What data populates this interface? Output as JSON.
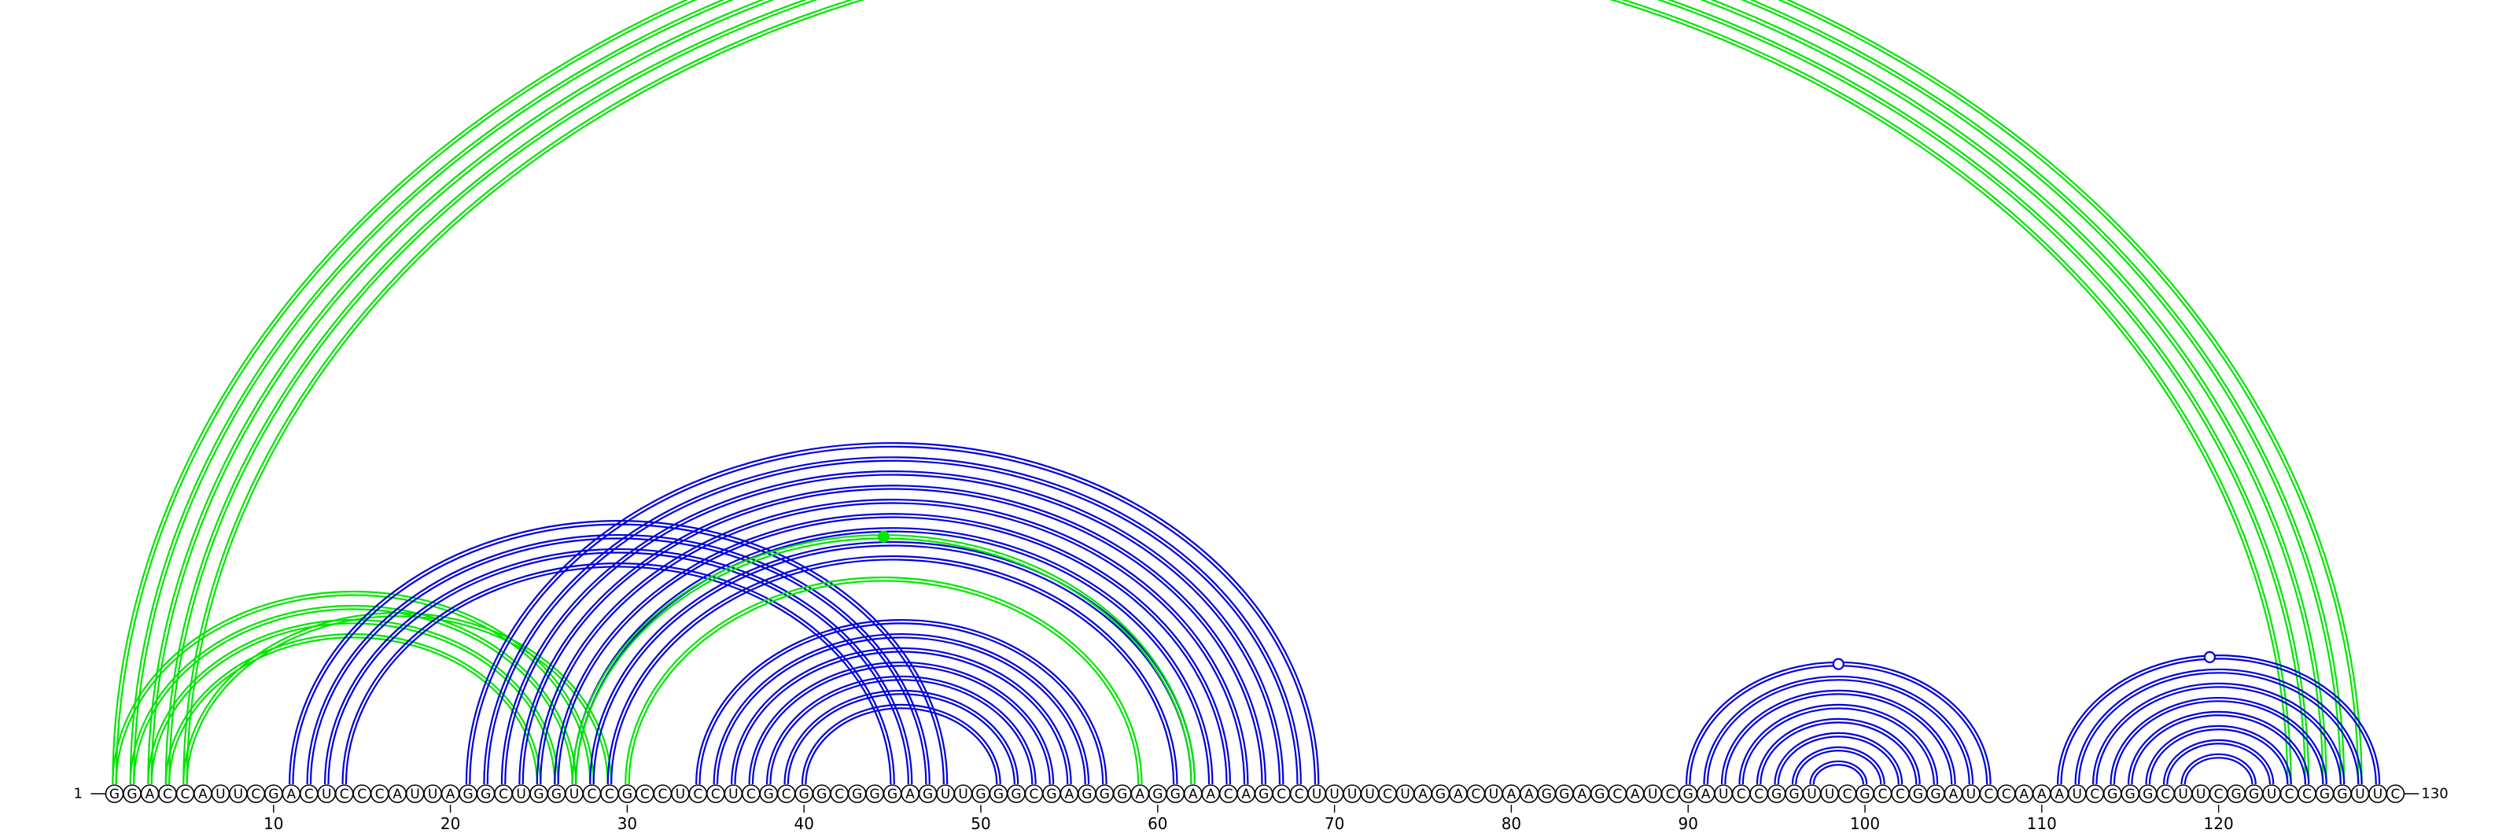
{
  "sequence": "GGACCAUUCGACUCCCAUUAGGCUGGUCCGCCUCCUCGCGGCGGGAGUUGGGCGAGGGAGGAACAGCCUUUUCUAGACUAAGGAGCAUCGAUCCGGUUCGCCGGAUCCAAAUCGGGCUUCGGUCCGGUUC",
  "start_label": "1",
  "end_label": "130",
  "ticks": [
    10,
    20,
    30,
    40,
    50,
    60,
    70,
    80,
    90,
    100,
    110,
    120
  ],
  "colors": {
    "green": "#00e600",
    "blue": "#0000dd",
    "backbone": "#000000"
  },
  "arc_groups": [
    {
      "name": "green-long-helix",
      "color": "green",
      "pairs": [
        [
          1,
          128
        ],
        [
          2,
          127
        ],
        [
          3,
          126
        ],
        [
          4,
          125
        ],
        [
          5,
          124
        ]
      ],
      "marker": {
        "position": 65.5,
        "style": "open"
      }
    },
    {
      "name": "green-5prime-hairpin",
      "color": "green",
      "pairs": [
        [
          1,
          28
        ],
        [
          2,
          27
        ],
        [
          3,
          26
        ],
        [
          4,
          25
        ],
        [
          5,
          29
        ]
      ]
    },
    {
      "name": "blue-pseudoknot",
      "color": "blue",
      "pairs": [
        [
          11,
          48
        ],
        [
          12,
          47
        ],
        [
          13,
          46
        ],
        [
          14,
          45
        ]
      ]
    },
    {
      "name": "blue-multiloop-outer",
      "color": "blue",
      "pairs": [
        [
          21,
          69
        ],
        [
          22,
          68
        ],
        [
          23,
          67
        ],
        [
          24,
          66
        ],
        [
          25,
          65
        ],
        [
          26,
          64
        ],
        [
          27,
          63
        ],
        [
          28,
          62
        ],
        [
          29,
          61
        ]
      ]
    },
    {
      "name": "green-multiloop-inner",
      "color": "green",
      "pairs": [
        [
          27,
          62
        ],
        [
          30,
          59
        ]
      ],
      "marker": {
        "position": 44.5,
        "style": "filled"
      }
    },
    {
      "name": "blue-central-hairpin",
      "color": "blue",
      "pairs": [
        [
          34,
          57
        ],
        [
          35,
          56
        ],
        [
          36,
          55
        ],
        [
          37,
          54
        ],
        [
          38,
          53
        ],
        [
          39,
          52
        ],
        [
          40,
          51
        ]
      ]
    },
    {
      "name": "blue-hairpin-90s",
      "color": "blue",
      "pairs": [
        [
          90,
          107
        ],
        [
          91,
          106
        ],
        [
          92,
          105
        ],
        [
          93,
          104
        ],
        [
          94,
          103
        ],
        [
          95,
          102
        ],
        [
          96,
          101
        ],
        [
          97,
          100
        ]
      ],
      "marker": {
        "position": 98.5,
        "style": "open"
      }
    },
    {
      "name": "blue-hairpin-3prime",
      "color": "blue",
      "pairs": [
        [
          111,
          129
        ],
        [
          112,
          128
        ],
        [
          113,
          127
        ],
        [
          114,
          126
        ],
        [
          115,
          125
        ],
        [
          116,
          124
        ],
        [
          117,
          123
        ],
        [
          118,
          122
        ]
      ],
      "marker": {
        "position": 119.5,
        "style": "open"
      }
    }
  ]
}
